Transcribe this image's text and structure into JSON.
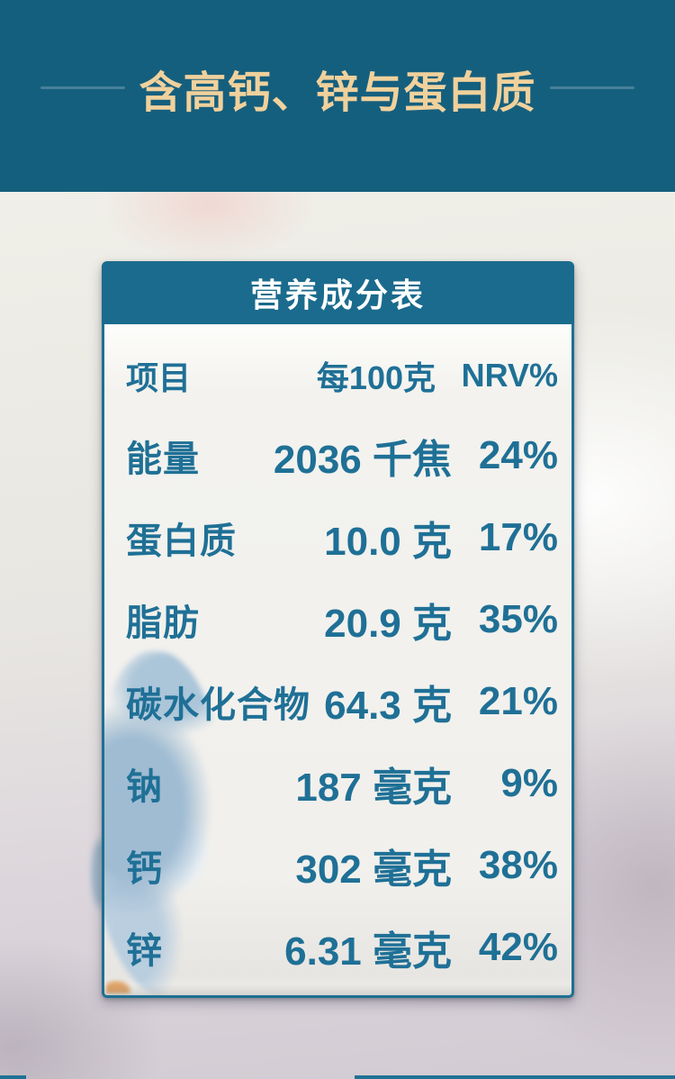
{
  "banner": {
    "title": "含高钙、锌与蛋白质"
  },
  "nutrition_card": {
    "title": "营养成分表",
    "columns": {
      "item": "项目",
      "amount": "每100克",
      "nrv": "NRV%"
    },
    "rows": [
      {
        "label": "能量",
        "amount": "2036 千焦",
        "nrv": "24%"
      },
      {
        "label": "蛋白质",
        "amount": "10.0 克",
        "nrv": "17%"
      },
      {
        "label": "脂肪",
        "amount": "20.9 克",
        "nrv": "35%"
      },
      {
        "label": "碳水化合物",
        "amount": "64.3 克",
        "nrv": "21%"
      },
      {
        "label": "钠",
        "amount": "187 毫克",
        "nrv": "9%"
      },
      {
        "label": "钙",
        "amount": "302 毫克",
        "nrv": "38%"
      },
      {
        "label": "锌",
        "amount": "6.31 毫克",
        "nrv": "42%"
      }
    ]
  },
  "colors": {
    "banner_background": "#155f7e",
    "banner_title": "#f0d19c",
    "divider_line": "#47809b",
    "card_header_background": "#1a6b8d",
    "card_border": "#1d7092",
    "table_text": "#1f7096",
    "card_body_background": "#f3f2ee",
    "watermark_blue": "#9ab8d1"
  }
}
